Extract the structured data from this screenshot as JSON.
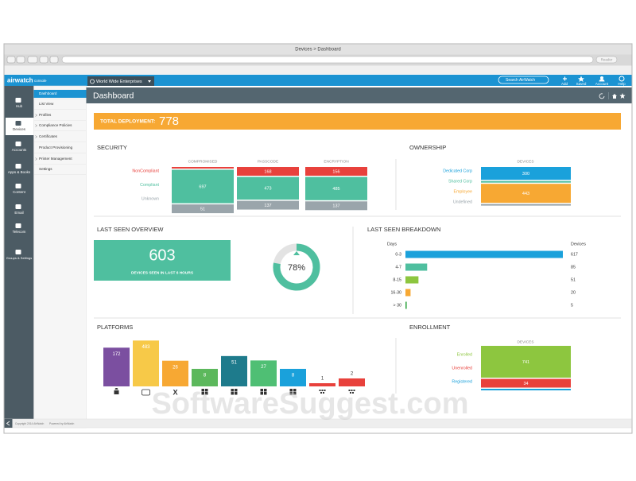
{
  "browser": {
    "title": "Devices > Dashboard",
    "reader": "Reader"
  },
  "header": {
    "logo": "airwatch",
    "console": "console",
    "org": "World Wide Enterprises",
    "search": "Search AirWatch",
    "actions": [
      "Add",
      "Saved",
      "Account",
      "Help"
    ]
  },
  "sidebar": {
    "items": [
      "Hub",
      "Devices",
      "Accounts",
      "Apps & Books",
      "Content",
      "Email",
      "Telecom",
      "Groups & Settings"
    ]
  },
  "submenu": {
    "items": [
      "Dashboard",
      "List View",
      "Profiles",
      "Compliance Policies",
      "Certificates",
      "Product Provisioning",
      "Printer Management",
      "Settings"
    ]
  },
  "footer": {
    "copyright": "Copyright 2014 AirWatch",
    "powered": "Powered by AirWatch"
  },
  "page_title": "Dashboard",
  "total_deployment": {
    "label": "TOTAL DEPLOYMENT:",
    "value": 778
  },
  "security": {
    "title": "SECURITY",
    "columns": [
      "COMPROMISED",
      "PASSCODE",
      "ENCRYPTION"
    ],
    "series": [
      {
        "name": "NonCompliant",
        "color": "#e8413c",
        "values": [
          30,
          168,
          156
        ]
      },
      {
        "name": "Compliant",
        "color": "#4fbf9f",
        "values": [
          697,
          473,
          485
        ]
      },
      {
        "name": "Unknown",
        "color": "#9aa5ab",
        "values": [
          51,
          137,
          137
        ]
      }
    ]
  },
  "ownership": {
    "title": "OWNERSHIP",
    "column": "DEVICES",
    "categories": [
      "Dedicated Corp",
      "Shared Corp",
      "Employee",
      "Undefined"
    ],
    "values": [
      300,
      10,
      443,
      25
    ],
    "colors": [
      "#1aa1db",
      "#4fbf9f",
      "#f7a833",
      "#9aa5ab"
    ]
  },
  "last_seen_overview": {
    "title": "LAST SEEN OVERVIEW",
    "count": 603,
    "caption": "DEVICES SEEN IN LAST 6 HOURS",
    "percent": 78,
    "percent_label": "78%"
  },
  "last_seen_breakdown": {
    "title": "LAST SEEN BREAKDOWN",
    "days_header": "Days",
    "devices_header": "Devices",
    "categories": [
      "0-3",
      "4-7",
      "8-15",
      "16-30",
      "> 30"
    ],
    "values": [
      617,
      85,
      51,
      20,
      5
    ],
    "colors": [
      "#1aa1db",
      "#4fbf9f",
      "#8dc63f",
      "#f7a833",
      "#3aa84a"
    ]
  },
  "platforms": {
    "title": "PLATFORMS",
    "type": "bar",
    "log_scale": true,
    "categories": [
      null,
      null,
      "X",
      null,
      null,
      null,
      null,
      null,
      null
    ],
    "values": [
      172,
      483,
      26,
      8,
      51,
      27,
      8,
      1,
      2
    ],
    "colors": [
      "#7b4fa0",
      "#f7c948",
      "#f7a833",
      "#5cb85c",
      "#1e7b8c",
      "#4fbf74",
      "#1aa1db",
      "#e8413c",
      "#e8413c"
    ]
  },
  "enrollment": {
    "title": "ENROLLMENT",
    "column": "DEVICES",
    "categories": [
      "Enrolled",
      "Unenrolled",
      "Registered"
    ],
    "values": [
      741,
      34,
      3
    ],
    "colors": [
      "#8dc63f",
      "#e8413c",
      "#1aa1db"
    ]
  },
  "watermark": "SoftwareSuggest.com"
}
